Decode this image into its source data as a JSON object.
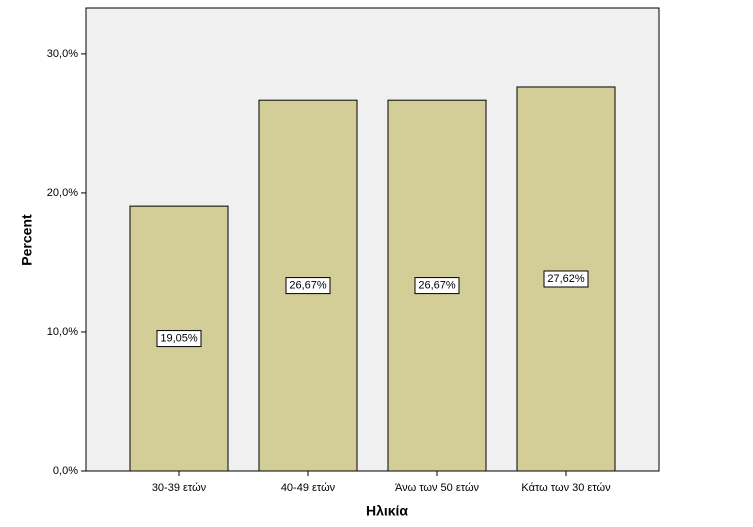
{
  "chart_data": {
    "type": "bar",
    "x_label": "Ηλικία",
    "y_label": "Percent",
    "categories": [
      "30-39 ετών",
      "40-49 ετών",
      "Άνω των 50 ετών",
      "Κάτω των 30 ετών"
    ],
    "values": [
      19.05,
      26.67,
      26.67,
      27.62
    ],
    "value_labels": [
      "19,05%",
      "26,67%",
      "26,67%",
      "27,62%"
    ],
    "color": "#d3ce97",
    "ylim": [
      0,
      33.3
    ],
    "yticks": [
      {
        "value": 0,
        "label": "0,0%"
      },
      {
        "value": 10,
        "label": "10,0%"
      },
      {
        "value": 20,
        "label": "20,0%"
      },
      {
        "value": 30,
        "label": "30,0%"
      }
    ]
  }
}
